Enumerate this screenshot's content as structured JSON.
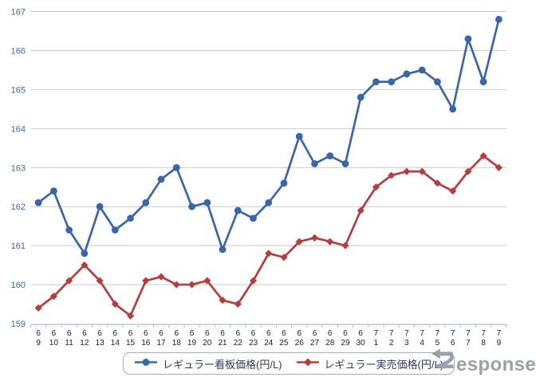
{
  "chart_data": {
    "type": "line",
    "title": "",
    "xlabel": "",
    "ylabel": "",
    "ylim": [
      159,
      167
    ],
    "yticks": [
      159,
      160,
      161,
      162,
      163,
      164,
      165,
      166,
      167
    ],
    "grid": true,
    "legend_position": "bottom",
    "categories": [
      "6/9",
      "6/10",
      "6/11",
      "6/12",
      "6/13",
      "6/14",
      "6/15",
      "6/16",
      "6/17",
      "6/18",
      "6/19",
      "6/20",
      "6/21",
      "6/22",
      "6/23",
      "6/24",
      "6/25",
      "6/26",
      "6/27",
      "6/28",
      "6/29",
      "6/30",
      "7/1",
      "7/2",
      "7/3",
      "7/4",
      "7/5",
      "7/6",
      "7/7",
      "7/8",
      "7/9"
    ],
    "series": [
      {
        "name": "レギュラー看板価格(円/L)",
        "marker": "circle",
        "color": "#3A66A8",
        "values": [
          162.1,
          162.4,
          161.4,
          160.8,
          162.0,
          161.4,
          161.7,
          162.1,
          162.7,
          163.0,
          162.0,
          162.1,
          160.9,
          161.9,
          161.7,
          162.1,
          162.6,
          163.8,
          163.1,
          163.3,
          163.1,
          164.8,
          165.2,
          165.2,
          165.4,
          165.5,
          165.2,
          164.5,
          166.3,
          165.2,
          166.8
        ]
      },
      {
        "name": "レギュラー実売価格(円/L)",
        "marker": "diamond",
        "color": "#B23E3D",
        "values": [
          159.4,
          159.7,
          160.1,
          160.5,
          160.1,
          159.5,
          159.2,
          160.1,
          160.2,
          160.0,
          160.0,
          160.1,
          159.6,
          159.5,
          160.1,
          160.8,
          160.7,
          161.1,
          161.2,
          161.1,
          161.0,
          161.9,
          162.5,
          162.8,
          162.9,
          162.9,
          162.6,
          162.4,
          162.9,
          163.3,
          163.0
        ]
      }
    ]
  },
  "colors": {
    "grid": "#c9c9c9",
    "axis": "#a8bed9",
    "ytick_label": "#3e68a8",
    "xtick_label": "#222222",
    "legend_text": "#2e3a63",
    "logo": "#9ba1a8"
  },
  "watermark": {
    "brand_text": "Response."
  }
}
